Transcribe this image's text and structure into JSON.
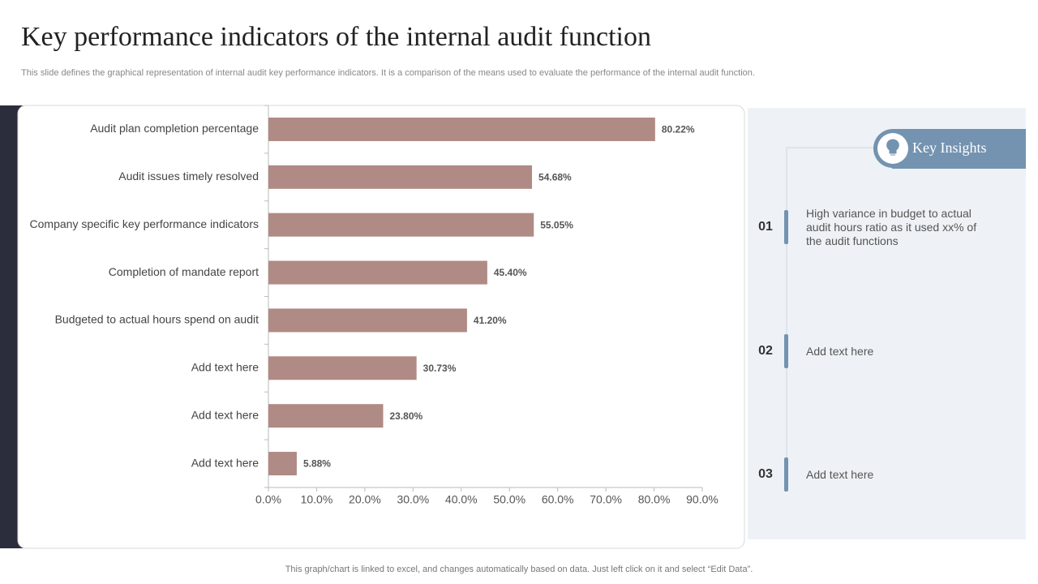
{
  "title": "Key performance indicators of the internal audit function",
  "subtitle": "This slide defines the graphical representation of internal audit key performance indicators. It is a comparison of the means used to evaluate the performance of the internal audit function.",
  "chart_data": {
    "type": "bar",
    "orientation": "horizontal",
    "categories": [
      "Audit plan completion percentage",
      "Audit issues timely resolved",
      "Company specific key performance indicators",
      "Completion of mandate report",
      "Budgeted to actual hours spend on audit",
      "Add text here",
      "Add text here",
      "Add text here"
    ],
    "values": [
      80.22,
      54.68,
      55.05,
      45.4,
      41.2,
      30.73,
      23.8,
      5.88
    ],
    "value_labels": [
      "80.22%",
      "54.68%",
      "55.05%",
      "45.40%",
      "41.20%",
      "30.73%",
      "23.80%",
      "5.88%"
    ],
    "color": "#b08a84",
    "xlim": [
      0,
      90
    ],
    "xticks": [
      {
        "value": 0,
        "label": "0.0%"
      },
      {
        "value": 10,
        "label": "10.0%"
      },
      {
        "value": 20,
        "label": "20.0%"
      },
      {
        "value": 30,
        "label": "30.0%"
      },
      {
        "value": 40,
        "label": "40.0%"
      },
      {
        "value": 50,
        "label": "50.0%"
      },
      {
        "value": 60,
        "label": "60.0%"
      },
      {
        "value": 70,
        "label": "70.0%"
      },
      {
        "value": 80,
        "label": "80.0%"
      },
      {
        "value": 90,
        "label": "90.0%"
      }
    ],
    "grid": false
  },
  "insights": {
    "title": "Key Insights",
    "items": [
      {
        "number": "01",
        "text": "High variance in  budget to actual audit hours ratio as it used xx% of the audit functions"
      },
      {
        "number": "02",
        "text": "Add text here"
      },
      {
        "number": "03",
        "text": "Add text here"
      }
    ]
  },
  "footer": "This graph/chart is linked to excel,  and changes automatically based on data. Just left click on it and select “Edit Data”."
}
